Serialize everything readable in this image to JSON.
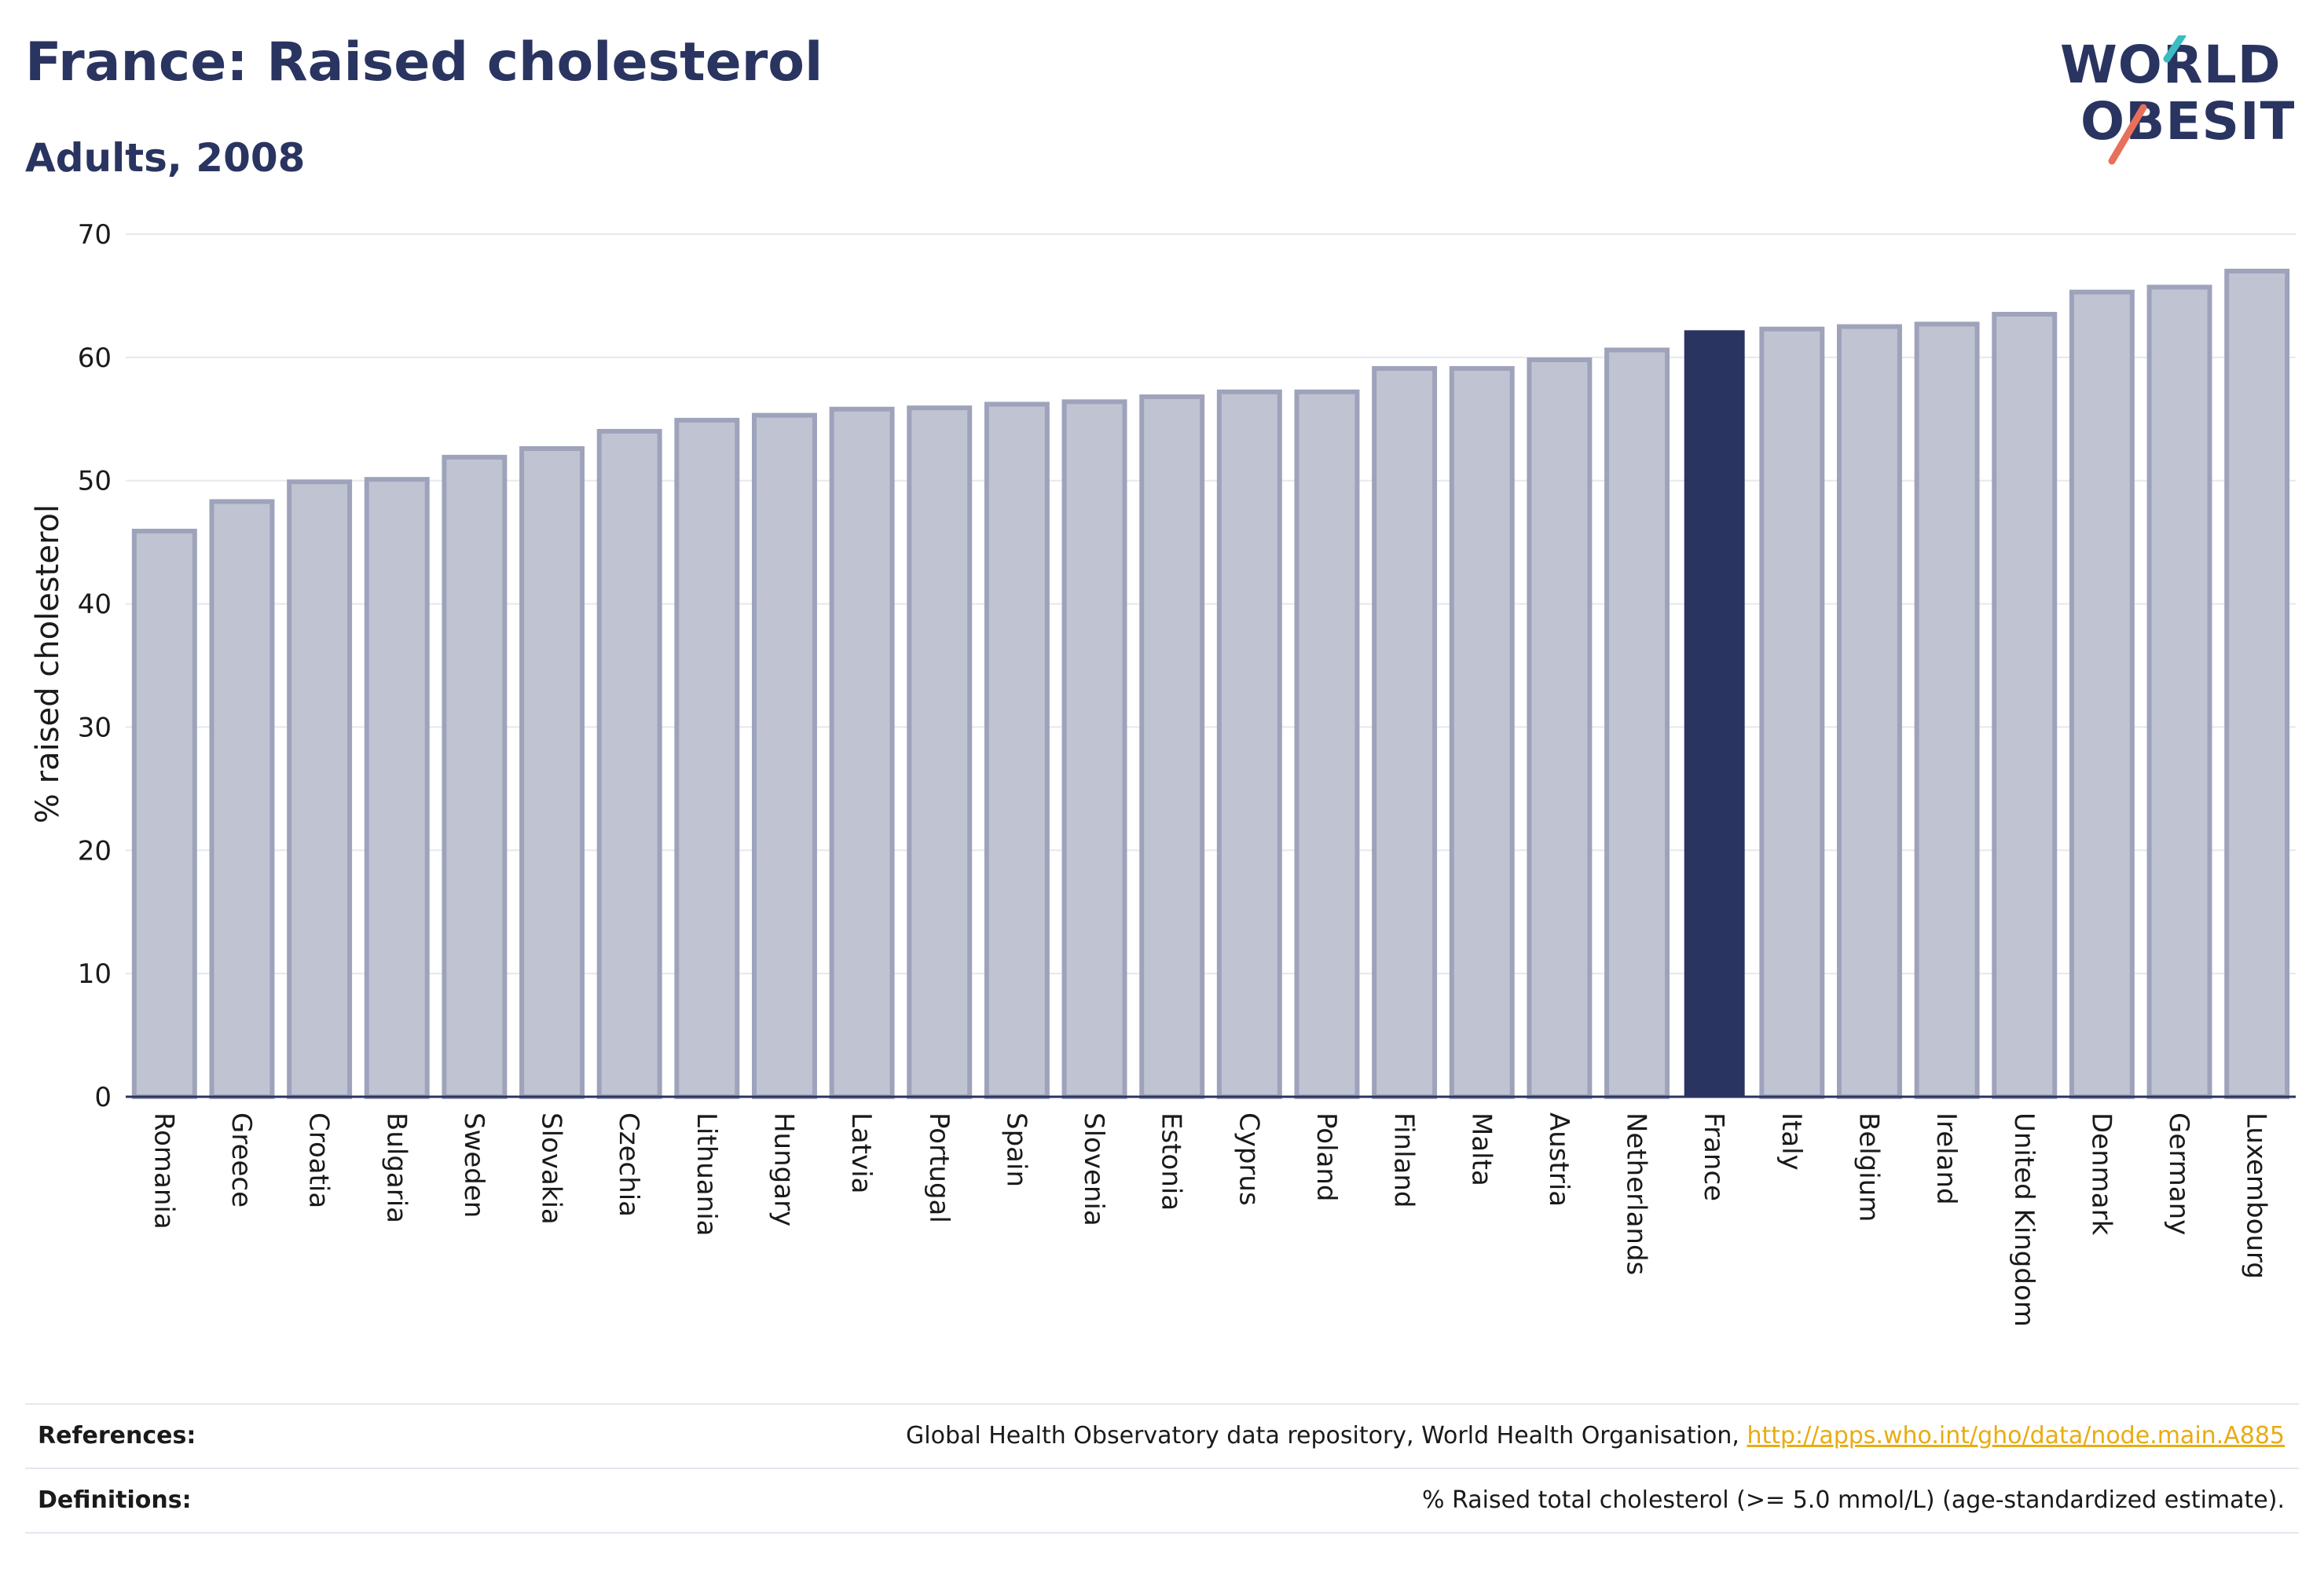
{
  "header": {
    "title": "France: Raised cholesterol",
    "subtitle": "Adults, 2008"
  },
  "logo": {
    "line1": "WORLD",
    "line2": "OBESITY",
    "text_color": "#2a3460",
    "accent_teal": "#3bbcc0",
    "accent_coral": "#e8705a"
  },
  "colors": {
    "highlight_bar": "#2a3460",
    "default_bar": "#c0c3d1",
    "default_bar_stroke": "#9ea3bb",
    "gridline": "#e6e8ee",
    "baseline": "#2a3460"
  },
  "chart_data": {
    "type": "bar",
    "title": "France: Raised cholesterol",
    "subtitle": "Adults, 2008",
    "ylabel": "% raised cholesterol",
    "xlabel": "",
    "ylim": [
      0,
      70
    ],
    "yticks": [
      0,
      10,
      20,
      30,
      40,
      50,
      60,
      70
    ],
    "grid": true,
    "highlight": "France",
    "categories": [
      "Romania",
      "Greece",
      "Croatia",
      "Bulgaria",
      "Sweden",
      "Slovakia",
      "Czechia",
      "Lithuania",
      "Hungary",
      "Latvia",
      "Portugal",
      "Spain",
      "Slovenia",
      "Estonia",
      "Cyprus",
      "Poland",
      "Finland",
      "Malta",
      "Austria",
      "Netherlands",
      "France",
      "Italy",
      "Belgium",
      "Ireland",
      "United Kingdom",
      "Denmark",
      "Germany",
      "Luxembourg"
    ],
    "values": [
      45.9,
      48.3,
      49.9,
      50.1,
      51.9,
      52.6,
      54.0,
      54.9,
      55.3,
      55.8,
      55.9,
      56.2,
      56.4,
      56.8,
      57.2,
      57.2,
      59.1,
      59.1,
      59.8,
      60.6,
      62.2,
      62.3,
      62.5,
      62.7,
      63.5,
      65.3,
      65.7,
      67.0
    ]
  },
  "footer": {
    "references_label": "References:",
    "references_text": "Global Health Observatory data repository, World Health Organisation, ",
    "references_link": "http://apps.who.int/gho/data/node.main.A885",
    "definitions_label": "Definitions:",
    "definitions_text": "% Raised total cholesterol (>= 5.0 mmol/L) (age-standardized estimate)."
  }
}
